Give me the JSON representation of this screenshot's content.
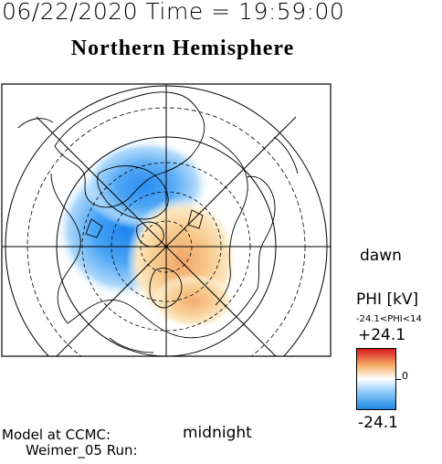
{
  "header": {
    "timestamp": "06/22/2020 Time = 19:59:00",
    "hemisphere": "Northern Hemisphere"
  },
  "map": {
    "projection": "polar",
    "orientation_labels": {
      "dawn": "dawn",
      "midnight": "midnight"
    },
    "colors": {
      "positive": "#e34b2a",
      "negative": "#2a8ff0",
      "zero": "#ffffff"
    }
  },
  "legend": {
    "title": "PHI [kV]",
    "range_text": "-24.1<PHI<14",
    "max_label": "+24.1",
    "mid_label": "0",
    "min_label": "-24.1",
    "colors": {
      "top": "#d7191c",
      "mid": "#ffffff",
      "bottom": "#1e88e5"
    }
  },
  "footer": {
    "line1": "Model at CCMC:",
    "line2": "Weimer_05 Run:"
  }
}
